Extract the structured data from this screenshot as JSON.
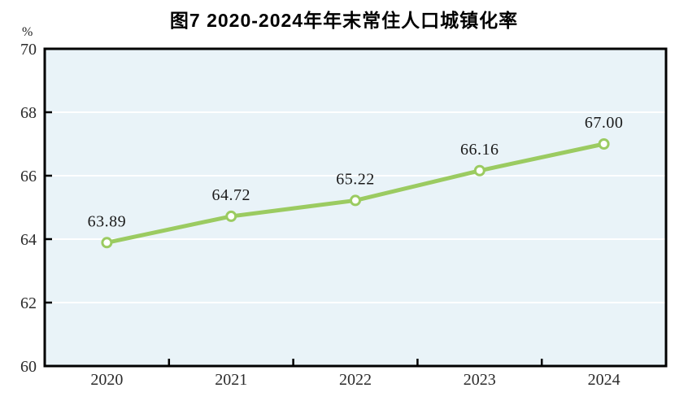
{
  "chart": {
    "title": "图7  2020-2024年年末常住人口城镇化率",
    "unit": "%"
  },
  "chart_data": {
    "type": "line",
    "title": "图7  2020-2024年年末常住人口城镇化率",
    "categories": [
      "2020",
      "2021",
      "2022",
      "2023",
      "2024"
    ],
    "values": [
      63.89,
      64.72,
      65.22,
      66.16,
      67.0
    ],
    "point_labels": [
      "63.89",
      "64.72",
      "65.22",
      "66.16",
      "67.00"
    ],
    "xlabel": "",
    "ylabel": "%",
    "ylim": [
      60,
      70
    ],
    "yticks": [
      60,
      62,
      64,
      66,
      68,
      70
    ],
    "grid": true,
    "legend": false,
    "colors": {
      "line": "#9bcb61",
      "marker_fill": "#ffffff",
      "marker_stroke": "#9bcb61",
      "plot_background": "#e9f3f8",
      "gridline": "#ffffff",
      "axis": "#000000",
      "text": "#1a1a1a"
    }
  }
}
